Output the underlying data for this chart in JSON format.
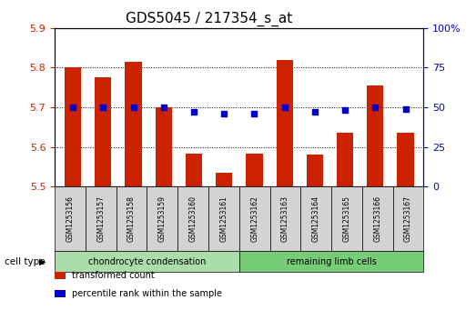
{
  "title": "GDS5045 / 217354_s_at",
  "samples": [
    "GSM1253156",
    "GSM1253157",
    "GSM1253158",
    "GSM1253159",
    "GSM1253160",
    "GSM1253161",
    "GSM1253162",
    "GSM1253163",
    "GSM1253164",
    "GSM1253165",
    "GSM1253166",
    "GSM1253167"
  ],
  "transformed_counts": [
    5.8,
    5.775,
    5.815,
    5.7,
    5.582,
    5.535,
    5.582,
    5.82,
    5.58,
    5.635,
    5.755,
    5.635
  ],
  "percentile_values": [
    50,
    50,
    50,
    50,
    47,
    46,
    46,
    50,
    47,
    48,
    50,
    49
  ],
  "ylim_left": [
    5.5,
    5.9
  ],
  "ylim_right": [
    0,
    100
  ],
  "yticks_left": [
    5.5,
    5.6,
    5.7,
    5.8,
    5.9
  ],
  "yticks_right": [
    0,
    25,
    50,
    75,
    100
  ],
  "bar_color": "#CC2200",
  "dot_color": "#0000CC",
  "sample_box_color": "#D3D3D3",
  "group_colors": [
    "#AADDAA",
    "#77CC77"
  ],
  "cell_type_groups": [
    {
      "label": "chondrocyte condensation",
      "n": 6
    },
    {
      "label": "remaining limb cells",
      "n": 6
    }
  ],
  "cell_type_label": "cell type",
  "legend_items": [
    {
      "label": "transformed count",
      "color": "#CC2200"
    },
    {
      "label": "percentile rank within the sample",
      "color": "#0000CC"
    }
  ],
  "background_color": "#FFFFFF",
  "tick_color_left": "#CC2200",
  "tick_color_right": "#0000CC",
  "bar_width": 0.55,
  "title_fontsize": 11,
  "axis_fontsize": 8,
  "sample_fontsize": 5.5,
  "group_fontsize": 7,
  "legend_fontsize": 7
}
